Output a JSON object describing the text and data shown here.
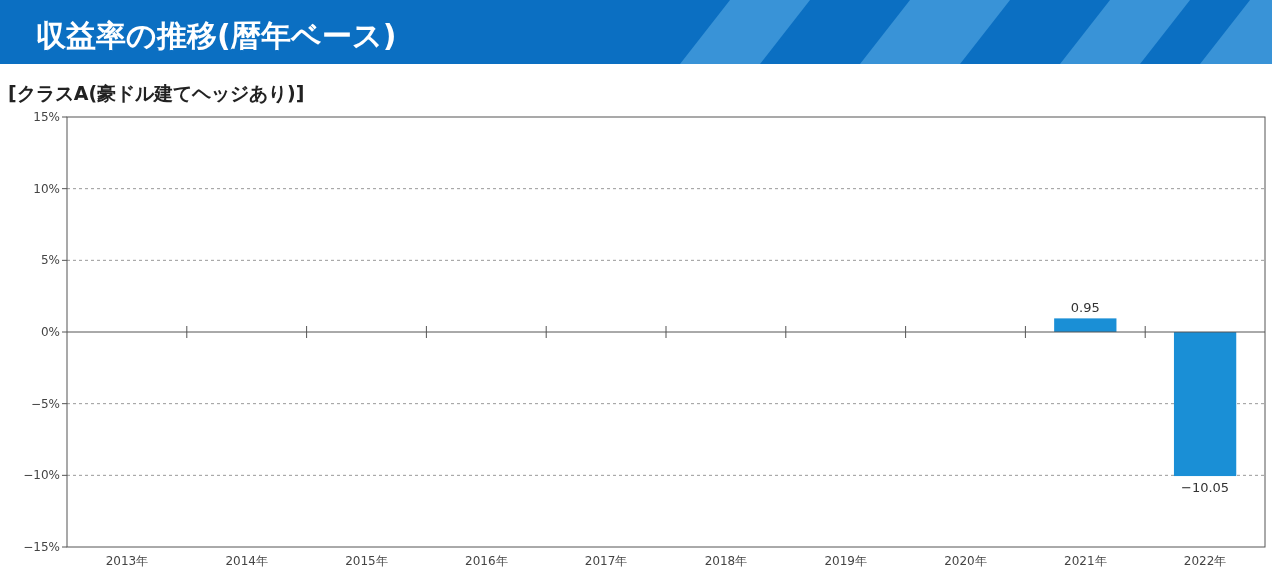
{
  "chart_data": {
    "type": "bar",
    "title": "収益率の推移(暦年ベース)",
    "subtitle": "[クラスA(豪ドル建てヘッジあり)]",
    "categories": [
      "2013年",
      "2014年",
      "2015年",
      "2016年",
      "2017年",
      "2018年",
      "2019年",
      "2020年",
      "2021年",
      "2022年"
    ],
    "values": [
      null,
      null,
      null,
      null,
      null,
      null,
      null,
      null,
      0.95,
      -10.05
    ],
    "value_labels": [
      null,
      null,
      null,
      null,
      null,
      null,
      null,
      null,
      "0.95",
      "−10.05"
    ],
    "color": "#1a8fd6",
    "ylim": [
      -15,
      15
    ],
    "yticks": [
      {
        "value": 15,
        "label": "15%"
      },
      {
        "value": 10,
        "label": "10%"
      },
      {
        "value": 5,
        "label": "5%"
      },
      {
        "value": 0,
        "label": "0%"
      },
      {
        "value": -5,
        "label": "−5%"
      },
      {
        "value": -10,
        "label": "−10%"
      },
      {
        "value": -15,
        "label": "−15%"
      }
    ],
    "grid": "y"
  }
}
